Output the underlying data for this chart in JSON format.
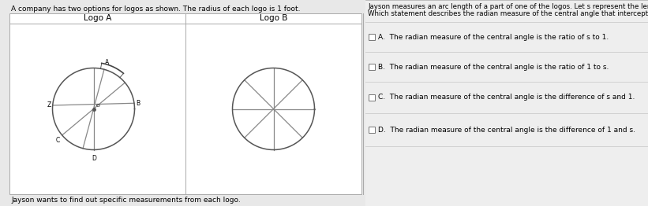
{
  "bg_color": "#e8e8e8",
  "panel_bg": "#ffffff",
  "right_bg": "#f0f0f0",
  "header_text": "A company has two options for logos as shown. The radius of each logo is 1 foot.",
  "logo_a_label": "Logo A",
  "logo_b_label": "Logo B",
  "footer_text": "Jayson wants to find out specific measurements from each logo.",
  "right_header1": "Jayson measures an arc length of a part of one of the logos. Let s represent the length of this arc in feet.",
  "right_header2": "Which statement describes the radian measure of the central angle that intercepts the arc of length s?",
  "option_A": "A.  The radian measure of the central angle is the ratio of s to 1.",
  "option_B": "B.  The radian measure of the central angle is the ratio of 1 to s.",
  "option_C": "C.  The radian measure of the central angle is the difference of s and 1.",
  "option_D": "D.  The radian measure of the central angle is the difference of 1 and s.",
  "circle_color": "#555555",
  "line_color": "#888888",
  "border_color": "#aaaaaa",
  "divider_color": "#cccccc"
}
